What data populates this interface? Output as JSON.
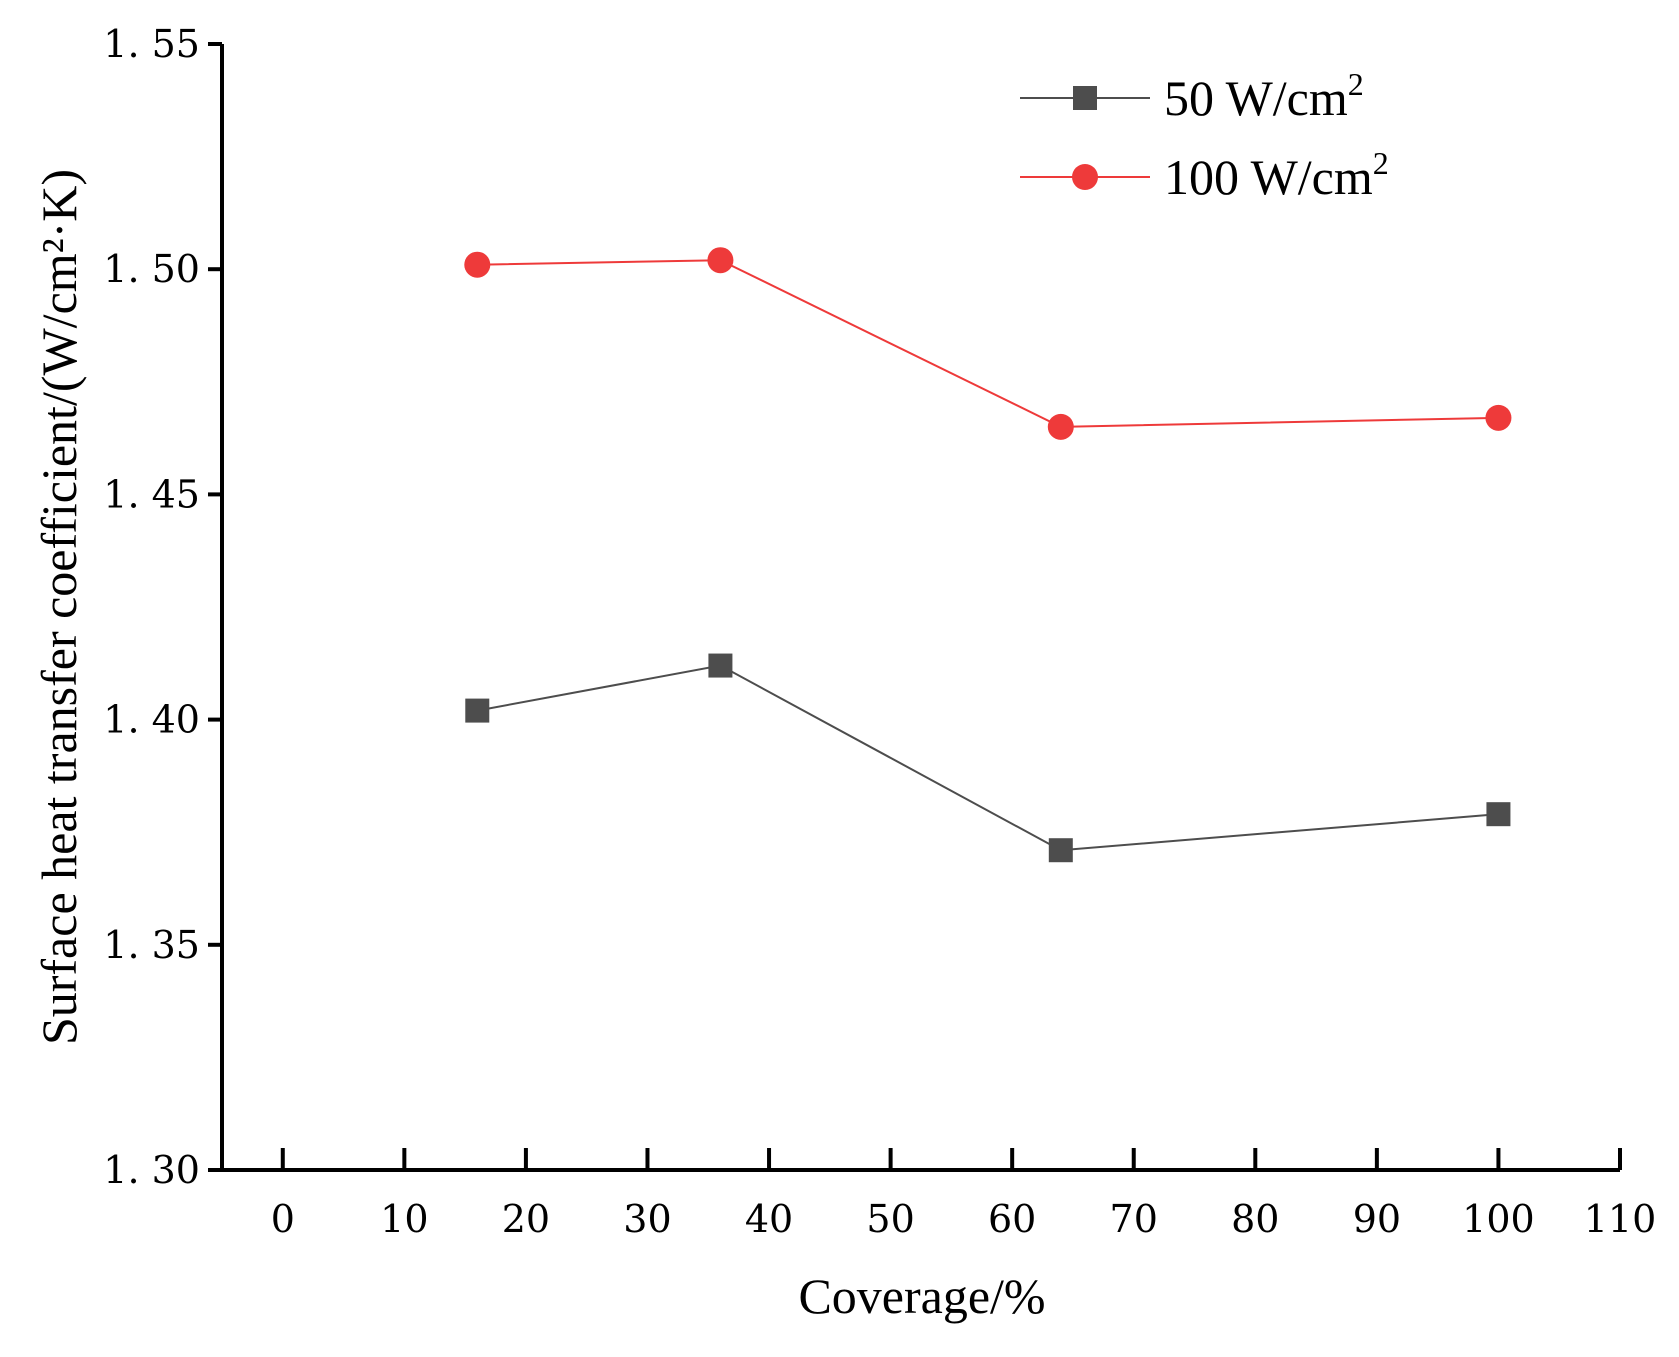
{
  "chart_data": {
    "type": "line",
    "xlabel": "Coverage/%",
    "ylabel": "Surface heat transfer coefficient/(W/cm²·K)",
    "xlim": [
      -5,
      110
    ],
    "ylim": [
      1.3,
      1.55
    ],
    "xticks": [
      0,
      10,
      20,
      30,
      40,
      50,
      60,
      70,
      80,
      90,
      100,
      110
    ],
    "yticks": [
      1.3,
      1.35,
      1.4,
      1.45,
      1.5,
      1.55
    ],
    "ytick_labels": [
      "1. 30",
      "1. 35",
      "1. 40",
      "1. 45",
      "1. 50",
      "1. 55"
    ],
    "legend_position": "top-right",
    "series": [
      {
        "name": "50 W/cm2",
        "label_main": "50 W/cm",
        "label_sup": "2",
        "color": "#4d4d4d",
        "marker": "square",
        "x": [
          16,
          36,
          64,
          100
        ],
        "y": [
          1.402,
          1.412,
          1.371,
          1.379
        ]
      },
      {
        "name": "100 W/cm2",
        "label_main": "100 W/cm",
        "label_sup": "2",
        "color": "#ee3a3a",
        "marker": "circle",
        "x": [
          16,
          36,
          64,
          100
        ],
        "y": [
          1.501,
          1.502,
          1.465,
          1.467
        ]
      }
    ]
  }
}
